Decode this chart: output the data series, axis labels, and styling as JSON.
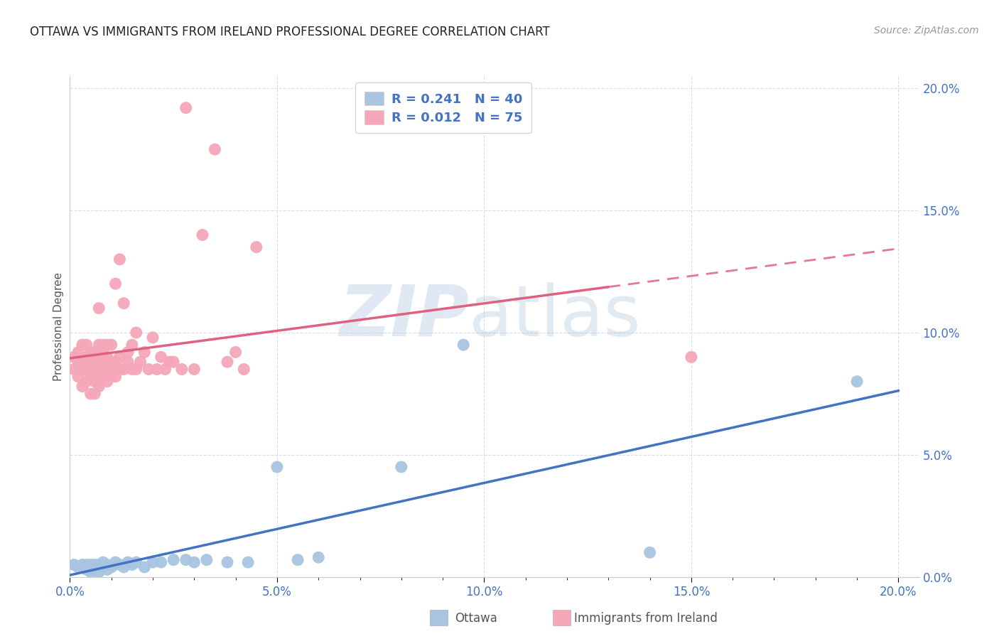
{
  "title": "OTTAWA VS IMMIGRANTS FROM IRELAND PROFESSIONAL DEGREE CORRELATION CHART",
  "source": "Source: ZipAtlas.com",
  "ylabel": "Professional Degree",
  "xlim": [
    0.0,
    0.205
  ],
  "ylim": [
    0.0,
    0.205
  ],
  "xtick_labels": [
    "0.0%",
    "",
    "",
    "",
    "5.0%",
    "",
    "",
    "",
    "",
    "10.0%",
    "",
    "",
    "",
    "",
    "15.0%",
    "",
    "",
    "",
    "",
    "20.0%"
  ],
  "xtick_vals": [
    0.0,
    0.01,
    0.02,
    0.03,
    0.05,
    0.06,
    0.07,
    0.08,
    0.09,
    0.1,
    0.11,
    0.12,
    0.13,
    0.14,
    0.15,
    0.16,
    0.17,
    0.18,
    0.19,
    0.2
  ],
  "major_xtick_labels": [
    "0.0%",
    "5.0%",
    "10.0%",
    "15.0%",
    "20.0%"
  ],
  "major_xtick_vals": [
    0.0,
    0.05,
    0.1,
    0.15,
    0.2
  ],
  "major_ytick_labels": [
    "20.0%",
    "15.0%",
    "10.0%",
    "5.0%",
    "0.0%"
  ],
  "major_ytick_vals": [
    0.2,
    0.15,
    0.1,
    0.05,
    0.0
  ],
  "ottawa_color": "#a8c4e0",
  "ireland_color": "#f4a7b9",
  "ottawa_line_color": "#4472c4",
  "ireland_line_color": "#e06080",
  "ottawa_R": 0.241,
  "ottawa_N": 40,
  "ireland_R": 0.012,
  "ireland_N": 75,
  "watermark_zip_color": "#c0d0e0",
  "watermark_atlas_color": "#b0c8d8",
  "legend_text_color": "#4472c4",
  "axis_label_color": "#4472c4",
  "grid_color": "#d8d8e8",
  "title_color": "#222222",
  "source_color": "#999999",
  "ylabel_color": "#555555",
  "bottom_legend_color": "#555555",
  "ottawa_x": [
    0.001,
    0.002,
    0.003,
    0.004,
    0.004,
    0.005,
    0.005,
    0.005,
    0.006,
    0.006,
    0.006,
    0.007,
    0.007,
    0.008,
    0.008,
    0.009,
    0.009,
    0.01,
    0.011,
    0.012,
    0.013,
    0.014,
    0.015,
    0.016,
    0.018,
    0.02,
    0.022,
    0.025,
    0.028,
    0.03,
    0.033,
    0.038,
    0.043,
    0.05,
    0.055,
    0.06,
    0.08,
    0.095,
    0.14,
    0.19
  ],
  "ottawa_y": [
    0.005,
    0.004,
    0.005,
    0.003,
    0.005,
    0.002,
    0.003,
    0.005,
    0.003,
    0.004,
    0.005,
    0.002,
    0.005,
    0.004,
    0.006,
    0.003,
    0.005,
    0.004,
    0.006,
    0.005,
    0.004,
    0.006,
    0.005,
    0.006,
    0.004,
    0.006,
    0.006,
    0.007,
    0.007,
    0.006,
    0.007,
    0.006,
    0.006,
    0.045,
    0.007,
    0.008,
    0.045,
    0.095,
    0.01,
    0.08
  ],
  "ireland_x": [
    0.001,
    0.001,
    0.002,
    0.002,
    0.002,
    0.003,
    0.003,
    0.003,
    0.003,
    0.004,
    0.004,
    0.004,
    0.004,
    0.005,
    0.005,
    0.005,
    0.005,
    0.005,
    0.006,
    0.006,
    0.006,
    0.006,
    0.006,
    0.007,
    0.007,
    0.007,
    0.007,
    0.007,
    0.007,
    0.008,
    0.008,
    0.008,
    0.008,
    0.008,
    0.009,
    0.009,
    0.009,
    0.009,
    0.01,
    0.01,
    0.01,
    0.01,
    0.011,
    0.011,
    0.011,
    0.012,
    0.012,
    0.012,
    0.013,
    0.013,
    0.014,
    0.014,
    0.015,
    0.015,
    0.016,
    0.016,
    0.017,
    0.018,
    0.019,
    0.02,
    0.021,
    0.022,
    0.023,
    0.024,
    0.025,
    0.027,
    0.028,
    0.03,
    0.032,
    0.035,
    0.038,
    0.04,
    0.042,
    0.045,
    0.15
  ],
  "ireland_y": [
    0.085,
    0.09,
    0.082,
    0.088,
    0.092,
    0.078,
    0.085,
    0.088,
    0.095,
    0.08,
    0.085,
    0.09,
    0.095,
    0.075,
    0.082,
    0.085,
    0.088,
    0.092,
    0.075,
    0.08,
    0.085,
    0.088,
    0.092,
    0.078,
    0.082,
    0.085,
    0.09,
    0.095,
    0.11,
    0.082,
    0.085,
    0.088,
    0.092,
    0.095,
    0.08,
    0.085,
    0.09,
    0.095,
    0.082,
    0.085,
    0.088,
    0.095,
    0.082,
    0.088,
    0.12,
    0.085,
    0.09,
    0.13,
    0.085,
    0.112,
    0.088,
    0.092,
    0.085,
    0.095,
    0.085,
    0.1,
    0.088,
    0.092,
    0.085,
    0.098,
    0.085,
    0.09,
    0.085,
    0.088,
    0.088,
    0.085,
    0.192,
    0.085,
    0.14,
    0.175,
    0.088,
    0.092,
    0.085,
    0.135,
    0.09
  ]
}
